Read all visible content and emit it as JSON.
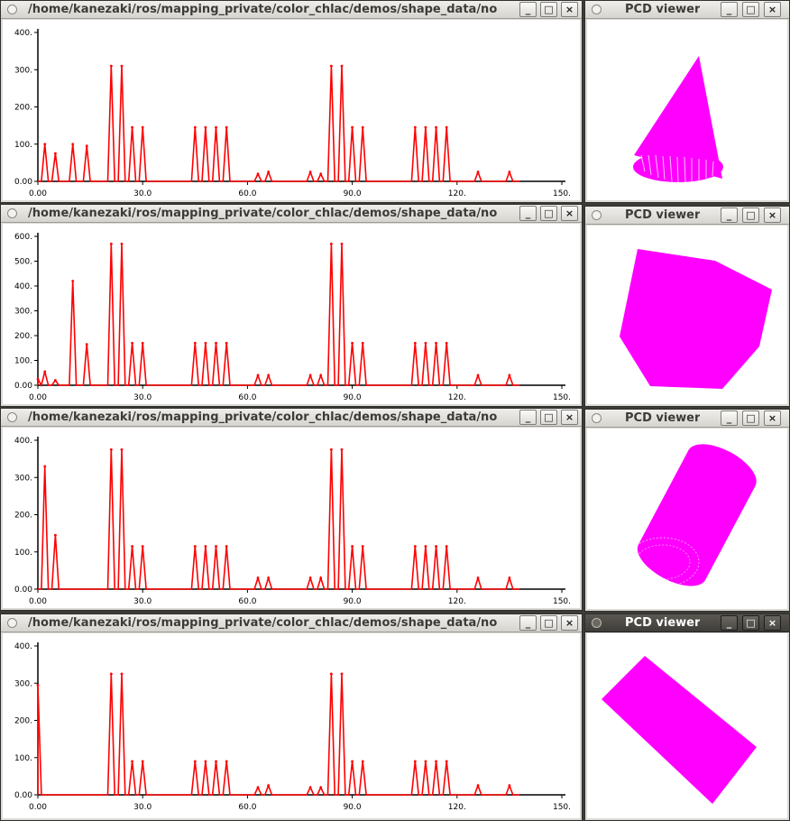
{
  "accent_line_color": "#ff0000",
  "point_cloud_color": "#ff00ff",
  "histogram_windows": [
    {
      "title": "/home/kanezaki/ros/mapping_private/color_chlac/demos/shape_data/no",
      "chart_data": {
        "type": "line",
        "ylim": [
          0,
          400
        ],
        "xlim": [
          0,
          150
        ],
        "y_tick_labels": [
          "0.00",
          "100.",
          "200.",
          "300.",
          "400."
        ],
        "x_tick_labels": [
          "0.00",
          "30.0",
          "60.0",
          "90.0",
          "120.",
          "150."
        ],
        "peaks": [
          [
            2,
            100
          ],
          [
            5,
            75
          ],
          [
            10,
            100
          ],
          [
            14,
            95
          ],
          [
            21,
            310
          ],
          [
            24,
            310
          ],
          [
            27,
            145
          ],
          [
            30,
            145
          ],
          [
            45,
            145
          ],
          [
            48,
            145
          ],
          [
            51,
            145
          ],
          [
            54,
            145
          ],
          [
            63,
            20
          ],
          [
            66,
            25
          ],
          [
            78,
            25
          ],
          [
            81,
            20
          ],
          [
            84,
            310
          ],
          [
            87,
            310
          ],
          [
            90,
            145
          ],
          [
            93,
            145
          ],
          [
            108,
            145
          ],
          [
            111,
            145
          ],
          [
            114,
            145
          ],
          [
            117,
            145
          ],
          [
            126,
            25
          ],
          [
            135,
            25
          ]
        ]
      }
    },
    {
      "title": "/home/kanezaki/ros/mapping_private/color_chlac/demos/shape_data/no",
      "chart_data": {
        "type": "line",
        "ylim": [
          0,
          600
        ],
        "xlim": [
          0,
          150
        ],
        "y_tick_labels": [
          "0.00",
          "100.",
          "200.",
          "300.",
          "400.",
          "500.",
          "600."
        ],
        "x_tick_labels": [
          "0.00",
          "30.0",
          "60.0",
          "90.0",
          "120.",
          "150."
        ],
        "peaks": [
          [
            0,
            25
          ],
          [
            2,
            55
          ],
          [
            5,
            20
          ],
          [
            10,
            420
          ],
          [
            14,
            165
          ],
          [
            21,
            570
          ],
          [
            24,
            570
          ],
          [
            27,
            170
          ],
          [
            30,
            170
          ],
          [
            45,
            170
          ],
          [
            48,
            170
          ],
          [
            51,
            170
          ],
          [
            54,
            170
          ],
          [
            63,
            40
          ],
          [
            66,
            40
          ],
          [
            78,
            40
          ],
          [
            81,
            40
          ],
          [
            84,
            570
          ],
          [
            87,
            570
          ],
          [
            90,
            170
          ],
          [
            93,
            170
          ],
          [
            108,
            170
          ],
          [
            111,
            170
          ],
          [
            114,
            170
          ],
          [
            117,
            170
          ],
          [
            126,
            40
          ],
          [
            135,
            40
          ]
        ]
      }
    },
    {
      "title": "/home/kanezaki/ros/mapping_private/color_chlac/demos/shape_data/no",
      "chart_data": {
        "type": "line",
        "ylim": [
          0,
          400
        ],
        "xlim": [
          0,
          150
        ],
        "y_tick_labels": [
          "0.00",
          "100.",
          "200.",
          "300.",
          "400."
        ],
        "x_tick_labels": [
          "0.00",
          "30.0",
          "60.0",
          "90.0",
          "120.",
          "150."
        ],
        "peaks": [
          [
            2,
            330
          ],
          [
            5,
            145
          ],
          [
            21,
            375
          ],
          [
            24,
            375
          ],
          [
            27,
            115
          ],
          [
            30,
            115
          ],
          [
            45,
            115
          ],
          [
            48,
            115
          ],
          [
            51,
            115
          ],
          [
            54,
            115
          ],
          [
            63,
            30
          ],
          [
            66,
            30
          ],
          [
            78,
            30
          ],
          [
            81,
            30
          ],
          [
            84,
            375
          ],
          [
            87,
            375
          ],
          [
            90,
            115
          ],
          [
            93,
            115
          ],
          [
            108,
            115
          ],
          [
            111,
            115
          ],
          [
            114,
            115
          ],
          [
            117,
            115
          ],
          [
            126,
            30
          ],
          [
            135,
            30
          ]
        ]
      }
    },
    {
      "title": "/home/kanezaki/ros/mapping_private/color_chlac/demos/shape_data/no",
      "chart_data": {
        "type": "line",
        "ylim": [
          0,
          400
        ],
        "xlim": [
          0,
          150
        ],
        "y_tick_labels": [
          "0.00",
          "100.",
          "200.",
          "300.",
          "400."
        ],
        "x_tick_labels": [
          "0.00",
          "30.0",
          "60.0",
          "90.0",
          "120.",
          "150."
        ],
        "peaks": [
          [
            0,
            295
          ],
          [
            21,
            325
          ],
          [
            24,
            325
          ],
          [
            27,
            90
          ],
          [
            30,
            90
          ],
          [
            45,
            90
          ],
          [
            48,
            90
          ],
          [
            51,
            90
          ],
          [
            54,
            90
          ],
          [
            63,
            20
          ],
          [
            66,
            25
          ],
          [
            78,
            20
          ],
          [
            81,
            20
          ],
          [
            84,
            325
          ],
          [
            87,
            325
          ],
          [
            90,
            90
          ],
          [
            93,
            90
          ],
          [
            108,
            90
          ],
          [
            111,
            90
          ],
          [
            114,
            90
          ],
          [
            117,
            90
          ],
          [
            126,
            25
          ],
          [
            135,
            25
          ]
        ]
      }
    }
  ],
  "pcd_windows": [
    {
      "title": "PCD viewer",
      "shape_icon": "cone-icon"
    },
    {
      "title": "PCD viewer",
      "shape_icon": "cube-icon"
    },
    {
      "title": "PCD viewer",
      "shape_icon": "cylinder-icon"
    },
    {
      "title": "PCD viewer",
      "shape_icon": "plane-icon"
    }
  ],
  "window_buttons": {
    "menu": "○",
    "minimize": "_",
    "maximize": "□",
    "close": "×"
  }
}
